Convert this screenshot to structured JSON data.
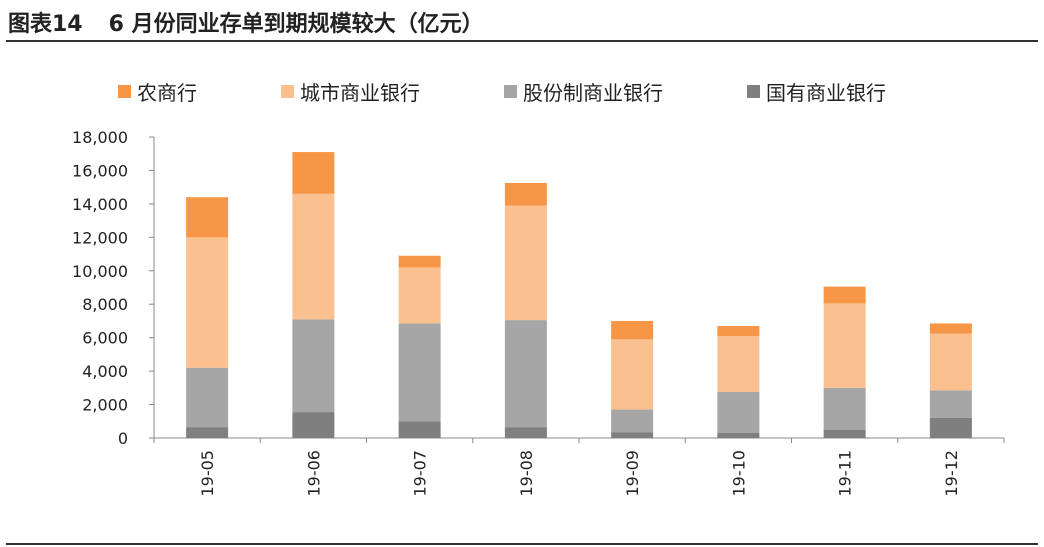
{
  "figure": {
    "label": "图表14",
    "caption": "6 月份同业存单到期规模较大（亿元）"
  },
  "chart_data": {
    "type": "bar",
    "stacked": true,
    "categories": [
      "19-05",
      "19-06",
      "19-07",
      "19-08",
      "19-09",
      "19-10",
      "19-11",
      "19-12"
    ],
    "series": [
      {
        "name": "国有商业银行",
        "color": "#7f7f7f",
        "values": [
          650,
          1550,
          1000,
          650,
          350,
          300,
          500,
          1200
        ]
      },
      {
        "name": "股份制商业银行",
        "color": "#a6a6a6",
        "values": [
          3550,
          5550,
          5850,
          6400,
          1350,
          2450,
          2500,
          1650
        ]
      },
      {
        "name": "城市商业银行",
        "color": "#fac090",
        "values": [
          7800,
          7500,
          3350,
          6850,
          4200,
          3350,
          5050,
          3400
        ]
      },
      {
        "name": "农商行",
        "color": "#f79646",
        "values": [
          2400,
          2500,
          700,
          1350,
          1100,
          600,
          1000,
          600
        ]
      }
    ],
    "legend_order": [
      "农商行",
      "城市商业银行",
      "股份制商业银行",
      "国有商业银行"
    ],
    "y_ticks": [
      "0",
      "2,000",
      "4,000",
      "6,000",
      "8,000",
      "10,000",
      "12,000",
      "14,000",
      "16,000",
      "18,000"
    ],
    "ylim": [
      0,
      18000
    ],
    "legend_position": "top",
    "grid": false
  }
}
